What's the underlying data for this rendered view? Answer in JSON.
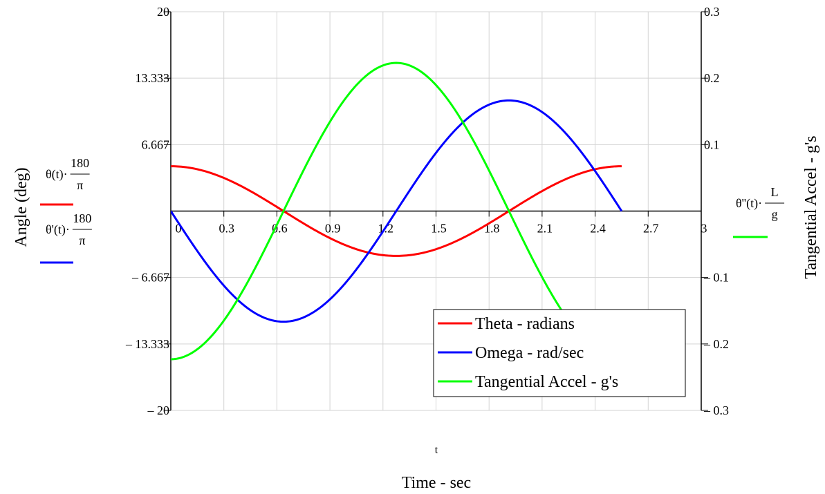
{
  "chart_data": {
    "type": "line",
    "x_expression": "t",
    "xlabel": "Time - sec",
    "ylabel_left": "Angle (deg)",
    "ylabel_right": "Tangential Accel - g's",
    "xlim": [
      0,
      3
    ],
    "ylim_left": [
      -20,
      20
    ],
    "ylim_right": [
      -0.3,
      0.3
    ],
    "x_ticks": [
      "0",
      "0.3",
      "0.6",
      "0.9",
      "1.2",
      "1.5",
      "1.8",
      "2.1",
      "2.4",
      "2.7",
      "3"
    ],
    "x_tick_values": [
      0,
      0.3,
      0.6,
      0.9,
      1.2,
      1.5,
      1.8,
      2.1,
      2.4,
      2.7,
      3
    ],
    "y_left_ticks": [
      "20",
      "13.333",
      "6.667",
      "– 6.667",
      "– 13.333",
      "– 20"
    ],
    "y_left_tick_values": [
      20,
      13.333,
      6.667,
      -6.667,
      -13.333,
      -20
    ],
    "y_right_ticks": [
      "0.3",
      "0.2",
      "0.1",
      "– 0.1",
      "– 0.2",
      "– 0.3"
    ],
    "y_right_tick_values": [
      0.3,
      0.2,
      0.1,
      -0.1,
      -0.2,
      -0.3
    ],
    "grid": true,
    "legend_position": "bottom-right",
    "t_max": 2.55,
    "period": 2.55,
    "series": [
      {
        "name": "Theta - radians",
        "axis": "left",
        "color": "#ff0000",
        "amplitude": 4.5,
        "kind": "cos",
        "expr": {
          "prefix": "θ(t)·",
          "num": "180",
          "den": "π"
        }
      },
      {
        "name": "Omega - rad/sec",
        "axis": "left",
        "color": "#0000ff",
        "amplitude": 11.1,
        "kind": "negsin",
        "expr": {
          "prefix": "θ'(t)·",
          "num": "180",
          "den": "π"
        }
      },
      {
        "name": "Tangential Accel - g's",
        "axis": "right",
        "color": "#00ff00",
        "amplitude": 0.223,
        "kind": "negcos",
        "expr": {
          "prefix": "θ''(t)·",
          "num": "L",
          "den": "g"
        }
      }
    ]
  }
}
